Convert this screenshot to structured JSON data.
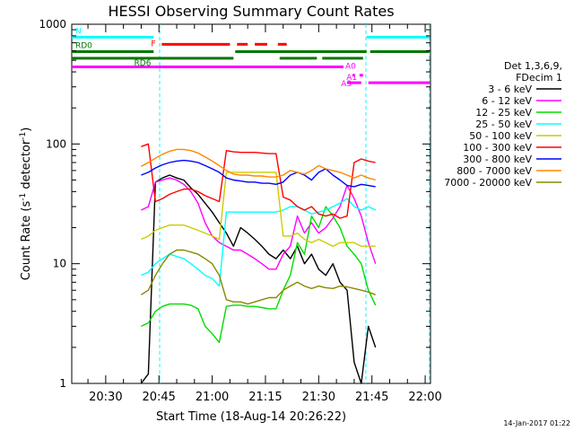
{
  "chart_data": {
    "type": "line",
    "title": "HESSI Observing Summary Count Rates",
    "xlabel": "Start Time (18-Aug-14 20:26:22)",
    "ylabel": "Count Rate (s⁻¹ detector⁻¹)",
    "ylabel_main": "Count Rate (s",
    "ylabel_mid": " detector",
    "ylabel_end": ")",
    "ylabel_sup": "-1",
    "yscale": "log",
    "ylim": [
      1,
      1000
    ],
    "xlim_minutes": [
      20.4333,
      121.5
    ],
    "x_tick_labels": [
      "20:30",
      "20:45",
      "21:00",
      "21:15",
      "21:30",
      "21:45",
      "22:00"
    ],
    "x_tick_minutes": [
      30,
      45,
      60,
      75,
      90,
      105,
      120
    ],
    "y_tick_labels": [
      "1",
      "10",
      "100",
      "1000"
    ],
    "y_tick_values": [
      1,
      10,
      100,
      1000
    ],
    "date_stamp": "14-Jan-2017 01:22",
    "legend": {
      "placement": "right",
      "header": [
        "Det 1,3,6,9,",
        "FDecim 1"
      ],
      "entries": [
        {
          "label": "3 - 6 keV",
          "color": "#000000"
        },
        {
          "label": "6 - 12 keV",
          "color": "#ff00ff"
        },
        {
          "label": "12 - 25 keV",
          "color": "#00dd00"
        },
        {
          "label": "25 - 50 keV",
          "color": "#00ffff"
        },
        {
          "label": "50 - 100 keV",
          "color": "#cccc00"
        },
        {
          "label": "100 - 300 keV",
          "color": "#ff0000"
        },
        {
          "label": "300 - 800 keV",
          "color": "#0000ff"
        },
        {
          "label": "800 - 7000 keV",
          "color": "#ff8800"
        },
        {
          "label": "7000 - 20000 keV",
          "color": "#888800"
        }
      ]
    },
    "flag_bars": [
      {
        "label": "N",
        "color": "#00ffff",
        "segments": [
          [
            20.4,
            43.5
          ],
          [
            103.5,
            121.2
          ]
        ],
        "level": 780
      },
      {
        "label": "F",
        "color": "#ff0000",
        "segments": [
          [
            45.8,
            65
          ],
          [
            67,
            70
          ],
          [
            72,
            75.5
          ],
          [
            78.5,
            81
          ]
        ],
        "level": 680
      },
      {
        "label": "RD0",
        "color": "#007700",
        "segments": [
          [
            20.4,
            43.5
          ],
          [
            66.5,
            103.5
          ],
          [
            104.5,
            121.2
          ]
        ],
        "level": 590
      },
      {
        "label": "RD6",
        "color": "#007700",
        "segments": [
          [
            20.4,
            66
          ],
          [
            79,
            89.5
          ],
          [
            91,
            102.5
          ]
        ],
        "level": 520
      },
      {
        "label": "A0",
        "color": "#ff00ff",
        "segments": [
          [
            20.4,
            97
          ]
        ],
        "level": 440
      },
      {
        "label": "A1",
        "color": "#ff00ff",
        "segments": [
          [
            99.5,
            100.2
          ],
          [
            101.5,
            102.5
          ]
        ],
        "level": 375
      },
      {
        "label": "A3",
        "color": "#ff00ff",
        "segments": [
          [
            98,
            102
          ],
          [
            104,
            121.2
          ]
        ],
        "level": 325
      }
    ],
    "dashed_markers_minutes": [
      45.2,
      103.3,
      121.2
    ],
    "series": [
      {
        "name": "3 - 6 keV",
        "color": "#000000",
        "x": [
          40,
          42,
          44,
          46,
          48,
          50,
          52,
          54,
          56,
          58,
          60,
          62,
          64,
          66,
          68,
          70,
          72,
          74,
          76,
          78,
          80,
          82,
          84,
          86,
          88,
          90,
          92,
          94,
          96,
          98,
          100,
          102,
          104,
          106
        ],
        "values": [
          1,
          1.2,
          48,
          52,
          55,
          52,
          50,
          43,
          38,
          32,
          27,
          22,
          18,
          14,
          20,
          18,
          16,
          14,
          12,
          11,
          13,
          11,
          14,
          10,
          12,
          9,
          8,
          10,
          7,
          6,
          1.5,
          1,
          3,
          2
        ]
      },
      {
        "name": "6 - 12 keV",
        "color": "#ff00ff",
        "x": [
          40,
          42,
          44,
          46,
          48,
          50,
          52,
          54,
          56,
          58,
          60,
          62,
          64,
          66,
          68,
          70,
          72,
          74,
          76,
          78,
          80,
          82,
          84,
          86,
          88,
          90,
          92,
          94,
          96,
          98,
          100,
          102,
          104,
          106
        ],
        "values": [
          28,
          30,
          48,
          50,
          52,
          50,
          46,
          40,
          32,
          22,
          17,
          15,
          14,
          13,
          13,
          12,
          11,
          10,
          9,
          9,
          12,
          14,
          25,
          18,
          22,
          18,
          20,
          24,
          30,
          45,
          35,
          25,
          15,
          10
        ]
      },
      {
        "name": "12 - 25 keV",
        "color": "#00dd00",
        "x": [
          40,
          42,
          44,
          46,
          48,
          50,
          52,
          54,
          56,
          58,
          60,
          62,
          64,
          66,
          68,
          70,
          72,
          74,
          76,
          78,
          80,
          82,
          84,
          86,
          88,
          90,
          92,
          94,
          96,
          98,
          100,
          102,
          104,
          106
        ],
        "values": [
          3,
          3.2,
          4,
          4.4,
          4.6,
          4.6,
          4.6,
          4.5,
          4.2,
          3,
          2.6,
          2.2,
          4.4,
          4.5,
          4.5,
          4.4,
          4.4,
          4.3,
          4.2,
          4.2,
          6,
          8,
          15,
          12,
          25,
          20,
          30,
          25,
          20,
          14,
          12,
          10,
          6,
          4.5
        ]
      },
      {
        "name": "25 - 50 keV",
        "color": "#00ffff",
        "x": [
          40,
          42,
          44,
          46,
          48,
          50,
          52,
          54,
          56,
          58,
          60,
          62,
          64,
          66,
          68,
          70,
          72,
          74,
          76,
          78,
          80,
          82,
          84,
          86,
          88,
          90,
          92,
          94,
          96,
          98,
          100,
          102,
          104,
          106
        ],
        "values": [
          8,
          8.5,
          10,
          11,
          12,
          11.5,
          11,
          10,
          9,
          8,
          7.5,
          6.5,
          27,
          27,
          27,
          27,
          27,
          27,
          27,
          27,
          28,
          30,
          30,
          28,
          26,
          27,
          28,
          30,
          32,
          35,
          30,
          28,
          30,
          28
        ]
      },
      {
        "name": "50 - 100 keV",
        "color": "#cccc00",
        "x": [
          40,
          42,
          44,
          46,
          48,
          50,
          52,
          54,
          56,
          58,
          60,
          62,
          64,
          66,
          68,
          70,
          72,
          74,
          76,
          78,
          80,
          82,
          84,
          86,
          88,
          90,
          92,
          94,
          96,
          98,
          100,
          102,
          104,
          106
        ],
        "values": [
          16,
          17,
          19,
          20,
          21,
          21,
          21,
          20,
          19,
          18,
          17,
          16,
          58,
          58,
          58,
          58,
          58,
          58,
          58,
          58,
          17,
          17,
          18,
          16,
          15,
          16,
          15,
          14,
          15,
          15,
          15,
          14,
          14,
          14
        ]
      },
      {
        "name": "100 - 300 keV",
        "color": "#ff0000",
        "x": [
          40,
          42,
          44,
          46,
          48,
          50,
          52,
          54,
          56,
          58,
          60,
          62,
          64,
          66,
          68,
          70,
          72,
          74,
          76,
          78,
          80,
          82,
          84,
          86,
          88,
          90,
          92,
          94,
          96,
          98,
          100,
          102,
          104,
          106
        ],
        "values": [
          95,
          100,
          33,
          35,
          38,
          40,
          42,
          42,
          40,
          37,
          35,
          33,
          88,
          86,
          85,
          85,
          85,
          84,
          83,
          83,
          36,
          34,
          30,
          28,
          30,
          26,
          25,
          26,
          24,
          25,
          70,
          75,
          72,
          70
        ]
      },
      {
        "name": "300 - 800 keV",
        "color": "#0000ff",
        "x": [
          40,
          42,
          44,
          46,
          48,
          50,
          52,
          54,
          56,
          58,
          60,
          62,
          64,
          66,
          68,
          70,
          72,
          74,
          76,
          78,
          80,
          82,
          84,
          86,
          88,
          90,
          92,
          94,
          96,
          98,
          100,
          102,
          104,
          106
        ],
        "values": [
          55,
          58,
          63,
          67,
          70,
          72,
          73,
          72,
          70,
          66,
          62,
          58,
          52,
          50,
          49,
          48,
          48,
          47,
          47,
          46,
          48,
          55,
          58,
          55,
          50,
          58,
          62,
          55,
          50,
          45,
          44,
          46,
          45,
          44
        ]
      },
      {
        "name": "800 - 7000 keV",
        "color": "#ff8800",
        "x": [
          40,
          42,
          44,
          46,
          48,
          50,
          52,
          54,
          56,
          58,
          60,
          62,
          64,
          66,
          68,
          70,
          72,
          74,
          76,
          78,
          80,
          82,
          84,
          86,
          88,
          90,
          92,
          94,
          96,
          98,
          100,
          102,
          104,
          106
        ],
        "values": [
          65,
          70,
          76,
          82,
          87,
          90,
          90,
          88,
          84,
          78,
          72,
          66,
          60,
          56,
          55,
          55,
          54,
          54,
          53,
          53,
          55,
          60,
          58,
          56,
          60,
          66,
          62,
          60,
          58,
          55,
          52,
          55,
          52,
          50
        ]
      },
      {
        "name": "7000 - 20000 keV",
        "color": "#888800",
        "x": [
          40,
          42,
          44,
          46,
          48,
          50,
          52,
          54,
          56,
          58,
          60,
          62,
          64,
          66,
          68,
          70,
          72,
          74,
          76,
          78,
          80,
          82,
          84,
          86,
          88,
          90,
          92,
          94,
          96,
          98,
          100,
          102,
          104,
          106
        ],
        "values": [
          5.5,
          6,
          8,
          10,
          12,
          13,
          13,
          12.5,
          12,
          11,
          10,
          8,
          5,
          4.8,
          4.8,
          4.6,
          4.8,
          5,
          5.2,
          5.2,
          6,
          6.5,
          7,
          6.5,
          6.2,
          6.5,
          6.3,
          6.2,
          6.5,
          6.4,
          6.2,
          6,
          5.8,
          5.5
        ]
      }
    ]
  }
}
